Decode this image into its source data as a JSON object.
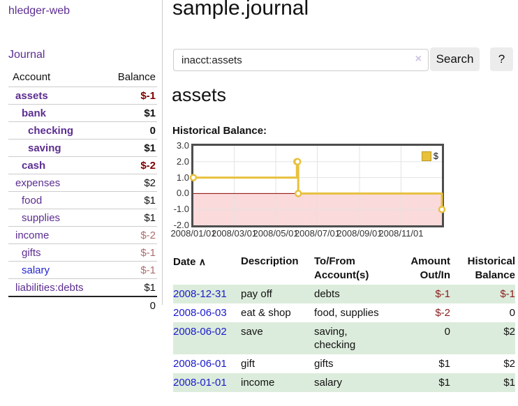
{
  "colors": {
    "link_purple": "#5c2d91",
    "link_blue": "#2424cf",
    "negative_bold": "#7d0000",
    "negative_soft": "#ad6d6d",
    "negative_table": "#8b1c1c",
    "row_stripe_green": "#dcecdc",
    "chart_line_gold": "#e8c13d",
    "chart_negative_fill": "#fadada",
    "chart_zero_line": "#8b0000",
    "button_gray": "#ececec"
  },
  "sidebar": {
    "title": "hledger-web",
    "journal_label": "Journal",
    "accounts": {
      "header_account": "Account",
      "header_balance": "Balance",
      "rows": [
        {
          "name": "assets",
          "balance": "$-1"
        },
        {
          "name": "bank",
          "balance": "$1"
        },
        {
          "name": "checking",
          "balance": "0"
        },
        {
          "name": "saving",
          "balance": "$1"
        },
        {
          "name": "cash",
          "balance": "$-2"
        },
        {
          "name": "expenses",
          "balance": "$2"
        },
        {
          "name": "food",
          "balance": "$1"
        },
        {
          "name": "supplies",
          "balance": "$1"
        },
        {
          "name": "income",
          "balance": "$-2"
        },
        {
          "name": "gifts",
          "balance": "$-1"
        },
        {
          "name": "salary",
          "balance": "$-1"
        },
        {
          "name": "liabilities:debts",
          "balance": "$1"
        }
      ],
      "total": "0"
    }
  },
  "main": {
    "title": "sample.journal",
    "search": {
      "value": "inacct:assets",
      "clear_icon": "×",
      "search_button": "Search",
      "help_button": "?"
    },
    "account_heading": "assets",
    "chart_label": "Historical Balance:",
    "register": {
      "sort_icon": "∧",
      "headers": {
        "date": "Date",
        "description": "Description",
        "accounts": "To/From Account(s)",
        "amount": "Amount Out/In",
        "balance": "Historical Balance"
      },
      "rows": [
        {
          "date": "2008-12-31",
          "description": "pay off",
          "accounts": "debts",
          "amount": "$-1",
          "balance": "$-1"
        },
        {
          "date": "2008-06-03",
          "description": "eat & shop",
          "accounts": "food, supplies",
          "amount": "$-2",
          "balance": "0"
        },
        {
          "date": "2008-06-02",
          "description": "save",
          "accounts": "saving, checking",
          "amount": "0",
          "balance": "$2"
        },
        {
          "date": "2008-06-01",
          "description": "gift",
          "accounts": "gifts",
          "amount": "$1",
          "balance": "$2"
        },
        {
          "date": "2008-01-01",
          "description": "income",
          "accounts": "salary",
          "amount": "$1",
          "balance": "$1"
        }
      ]
    }
  },
  "chart_data": {
    "type": "line",
    "step": true,
    "title": "Historical Balance:",
    "legend_label": "$",
    "legend_position": "top-right",
    "grid": true,
    "xlim": [
      "2008-01-01",
      "2008-12-31"
    ],
    "ylim": [
      -2,
      3
    ],
    "yticks": [
      {
        "v": 3,
        "label": "3.0"
      },
      {
        "v": 2,
        "label": "2.0"
      },
      {
        "v": 1,
        "label": "1.0"
      },
      {
        "v": 0,
        "label": "0.0"
      },
      {
        "v": -1,
        "label": "-1.0"
      },
      {
        "v": -2,
        "label": "-2.0"
      }
    ],
    "xticks": [
      {
        "date": "2008-01-01",
        "label": "2008/01/01"
      },
      {
        "date": "2008-03-01",
        "label": "2008/03/01"
      },
      {
        "date": "2008-05-01",
        "label": "2008/05/01"
      },
      {
        "date": "2008-07-01",
        "label": "2008/07/01"
      },
      {
        "date": "2008-09-01",
        "label": "2008/09/01"
      },
      {
        "date": "2008-11-01",
        "label": "2008/11/01"
      }
    ],
    "series": [
      {
        "name": "$",
        "points": [
          [
            "2008-01-01",
            1
          ],
          [
            "2008-06-01",
            2
          ],
          [
            "2008-06-02",
            2
          ],
          [
            "2008-06-03",
            0
          ],
          [
            "2008-12-31",
            -1
          ]
        ]
      }
    ],
    "negative_region_fill": "#fadada",
    "line_color": "#e8c13d",
    "zero_line_color": "#8b0000",
    "gridline_color": "#e3e3e3"
  }
}
